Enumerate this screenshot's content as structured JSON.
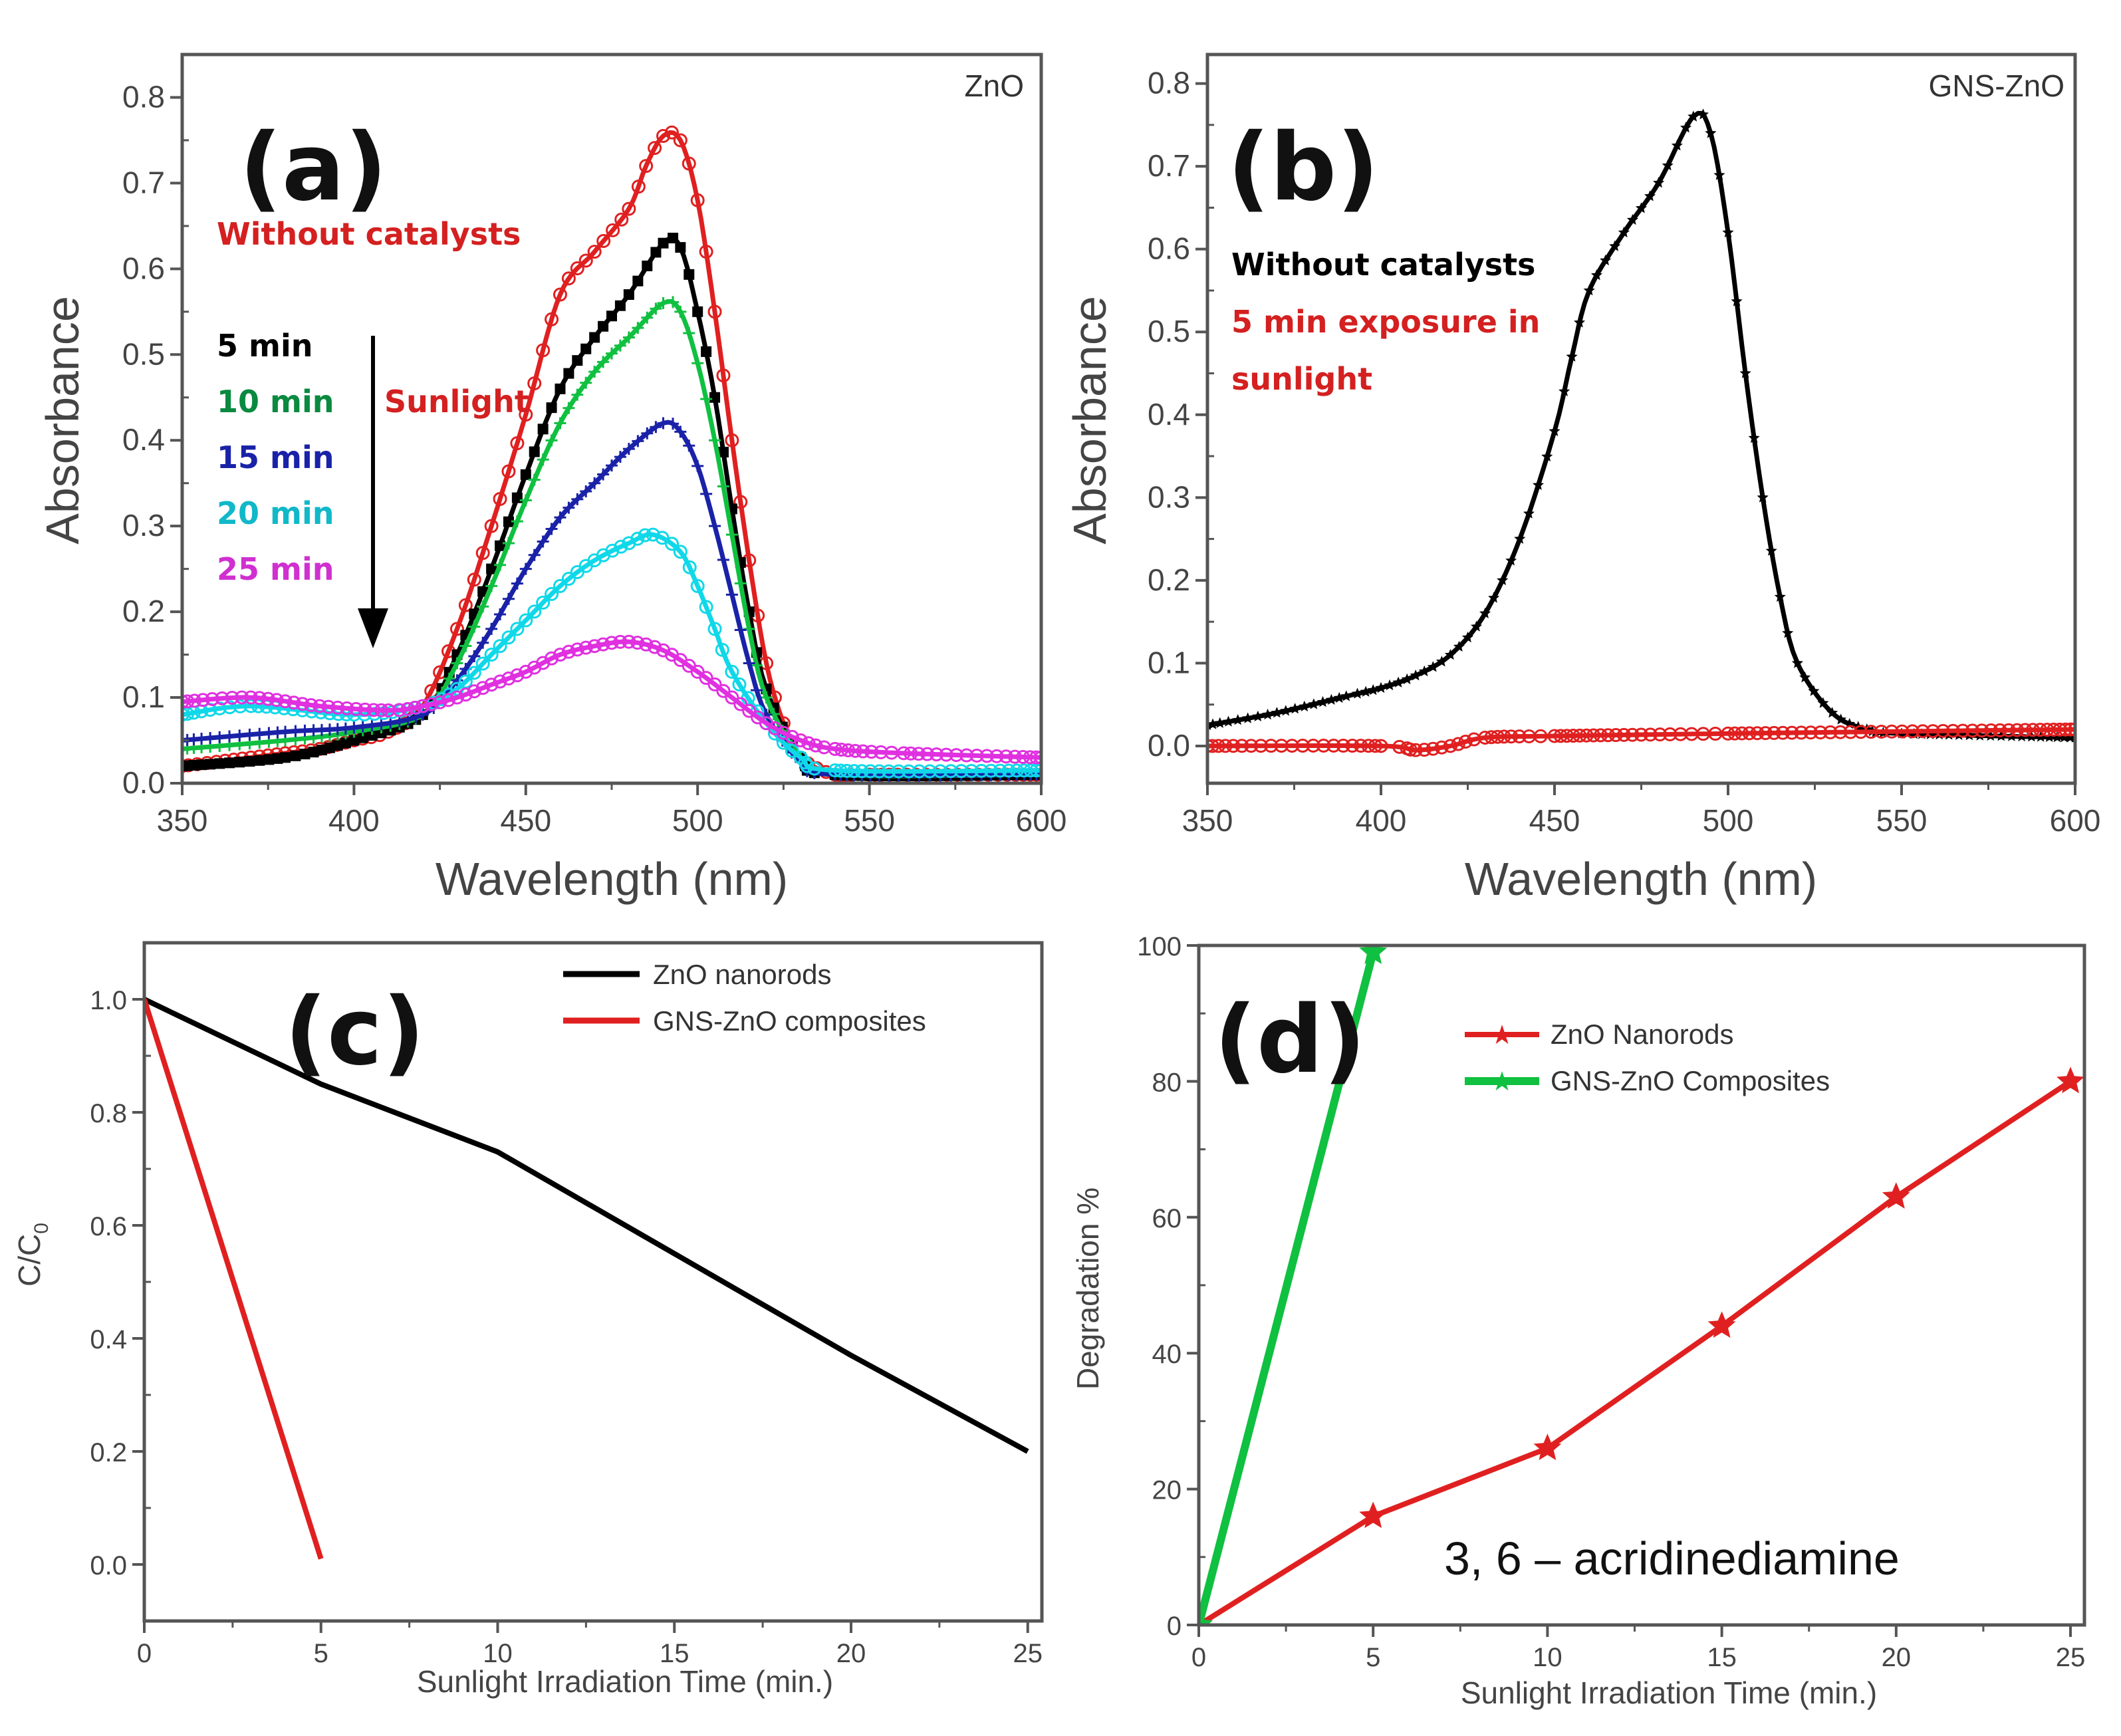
{
  "colors": {
    "red": "#e02020",
    "black": "#000000",
    "green": "#10c040",
    "blue": "#1a22a8",
    "cyan": "#10d8e8",
    "magenta": "#e030e0",
    "darkgreen": "#0a8a40",
    "axis": "#555555"
  },
  "chart_data": [
    {
      "id": "a",
      "type": "line",
      "panel_label": "(a)",
      "corner_label": "ZnO",
      "xlabel": "Wavelength (nm)",
      "ylabel": "Absorbance",
      "xlim": [
        350,
        600
      ],
      "ylim": [
        0,
        0.85
      ],
      "xticks": [
        350,
        400,
        450,
        500,
        550,
        600
      ],
      "xtick_labels": [
        "350",
        "400",
        "450",
        "500",
        "550",
        "600"
      ],
      "yticks": [
        0,
        0.1,
        0.2,
        0.3,
        0.4,
        0.5,
        0.6,
        0.7,
        0.8
      ],
      "ytick_labels": [
        "0.0",
        "0.1",
        "0.2",
        "0.3",
        "0.4",
        "0.5",
        "0.6",
        "0.7",
        "0.8"
      ],
      "annotations": {
        "without": "Without catalysts",
        "sunlight": "Sunlight",
        "t5": "5 min",
        "t10": "10 min",
        "t15": "15 min",
        "t20": "20 min",
        "t25": "25 min"
      },
      "series": [
        {
          "name": "Without catalysts",
          "color": "#e02020",
          "marker": "circle",
          "x": [
            350,
            360,
            370,
            380,
            390,
            400,
            410,
            420,
            430,
            440,
            450,
            460,
            470,
            480,
            485,
            490,
            495,
            500,
            505,
            510,
            515,
            520,
            525,
            530,
            540,
            550,
            600
          ],
          "y": [
            0.02,
            0.025,
            0.03,
            0.035,
            0.04,
            0.05,
            0.06,
            0.09,
            0.18,
            0.3,
            0.43,
            0.57,
            0.62,
            0.67,
            0.72,
            0.755,
            0.75,
            0.68,
            0.55,
            0.4,
            0.26,
            0.14,
            0.07,
            0.03,
            0.01,
            0.01,
            0.01
          ]
        },
        {
          "name": "5 min",
          "color": "#000000",
          "marker": "square",
          "x": [
            350,
            380,
            400,
            420,
            430,
            440,
            450,
            460,
            470,
            480,
            490,
            495,
            500,
            505,
            510,
            515,
            520,
            530,
            540,
            600
          ],
          "y": [
            0.02,
            0.03,
            0.05,
            0.08,
            0.15,
            0.25,
            0.36,
            0.46,
            0.52,
            0.57,
            0.63,
            0.625,
            0.55,
            0.45,
            0.32,
            0.2,
            0.11,
            0.03,
            0.01,
            0.01
          ]
        },
        {
          "name": "10 min",
          "color": "#10c040",
          "marker": "cross",
          "x": [
            350,
            380,
            400,
            420,
            430,
            440,
            450,
            460,
            470,
            480,
            490,
            495,
            500,
            505,
            510,
            515,
            520,
            530,
            540,
            600
          ],
          "y": [
            0.04,
            0.05,
            0.06,
            0.08,
            0.14,
            0.23,
            0.33,
            0.42,
            0.48,
            0.52,
            0.56,
            0.55,
            0.49,
            0.4,
            0.29,
            0.18,
            0.1,
            0.03,
            0.01,
            0.01
          ]
        },
        {
          "name": "15 min",
          "color": "#1a22a8",
          "marker": "cross",
          "x": [
            350,
            380,
            400,
            420,
            430,
            440,
            450,
            460,
            470,
            480,
            490,
            495,
            500,
            505,
            510,
            515,
            520,
            530,
            540,
            600
          ],
          "y": [
            0.05,
            0.06,
            0.065,
            0.08,
            0.12,
            0.18,
            0.25,
            0.31,
            0.35,
            0.39,
            0.42,
            0.41,
            0.37,
            0.3,
            0.22,
            0.14,
            0.08,
            0.025,
            0.01,
            0.01
          ]
        },
        {
          "name": "20 min",
          "color": "#10d8e8",
          "marker": "circle",
          "x": [
            350,
            370,
            400,
            420,
            430,
            440,
            450,
            460,
            470,
            480,
            487,
            495,
            500,
            505,
            510,
            520,
            530,
            540,
            600
          ],
          "y": [
            0.08,
            0.09,
            0.08,
            0.09,
            0.11,
            0.15,
            0.19,
            0.23,
            0.26,
            0.28,
            0.29,
            0.27,
            0.23,
            0.18,
            0.13,
            0.07,
            0.03,
            0.015,
            0.015
          ]
        },
        {
          "name": "25 min",
          "color": "#e030e0",
          "marker": "circle",
          "x": [
            350,
            370,
            390,
            410,
            420,
            430,
            440,
            450,
            460,
            470,
            480,
            490,
            500,
            510,
            520,
            530,
            540,
            560,
            600
          ],
          "y": [
            0.095,
            0.1,
            0.09,
            0.085,
            0.09,
            0.1,
            0.115,
            0.13,
            0.15,
            0.16,
            0.165,
            0.155,
            0.13,
            0.1,
            0.07,
            0.05,
            0.04,
            0.035,
            0.03
          ]
        }
      ]
    },
    {
      "id": "b",
      "type": "line",
      "panel_label": "(b)",
      "corner_label": "GNS-ZnO",
      "xlabel": "Wavelength (nm)",
      "ylabel": "Absorbance",
      "xlim": [
        350,
        600
      ],
      "ylim": [
        -0.045,
        0.835
      ],
      "xticks": [
        350,
        400,
        450,
        500,
        550,
        600
      ],
      "xtick_labels": [
        "350",
        "400",
        "450",
        "500",
        "550",
        "600"
      ],
      "yticks": [
        0,
        0.1,
        0.2,
        0.3,
        0.4,
        0.5,
        0.6,
        0.7,
        0.8
      ],
      "ytick_labels": [
        "0.0",
        "0.1",
        "0.2",
        "0.3",
        "0.4",
        "0.5",
        "0.6",
        "0.7",
        "0.8"
      ],
      "annotations": {
        "without": "Without catalysts",
        "exposure1": "5 min exposure in",
        "exposure2": "sunlight"
      },
      "series": [
        {
          "name": "Without catalysts",
          "color": "#000000",
          "marker": "star",
          "x": [
            350,
            370,
            390,
            400,
            410,
            420,
            430,
            440,
            450,
            455,
            460,
            470,
            480,
            490,
            495,
            500,
            505,
            510,
            515,
            520,
            530,
            540,
            550,
            600
          ],
          "y": [
            0.025,
            0.04,
            0.06,
            0.07,
            0.085,
            0.11,
            0.16,
            0.25,
            0.38,
            0.47,
            0.55,
            0.62,
            0.68,
            0.76,
            0.74,
            0.62,
            0.45,
            0.3,
            0.18,
            0.1,
            0.04,
            0.02,
            0.015,
            0.01
          ]
        },
        {
          "name": "5 min exposure in sunlight",
          "color": "#e02020",
          "marker": "circle",
          "x": [
            350,
            400,
            410,
            420,
            430,
            450,
            500,
            600
          ],
          "y": [
            0.0,
            0.0,
            -0.005,
            0.0,
            0.01,
            0.012,
            0.015,
            0.02
          ]
        }
      ]
    },
    {
      "id": "c",
      "type": "line",
      "panel_label": "(c)",
      "xlabel": "Sunlight Irradiation Time (min.)",
      "ylabel": "C/C",
      "ylabel_sub": "0",
      "xlim": [
        0,
        25.4
      ],
      "ylim": [
        -0.1,
        1.1
      ],
      "xticks": [
        0,
        5,
        10,
        15,
        20,
        25
      ],
      "xtick_labels": [
        "0",
        "5",
        "10",
        "15",
        "20",
        "25"
      ],
      "yticks": [
        0,
        0.2,
        0.4,
        0.6,
        0.8,
        1.0
      ],
      "ytick_labels": [
        "0.0",
        "0.2",
        "0.4",
        "0.6",
        "0.8",
        "1.0"
      ],
      "legend": "top-right",
      "series": [
        {
          "name": "ZnO nanorods",
          "color": "#000000",
          "marker": "none",
          "x": [
            0,
            5,
            10,
            15,
            20,
            25
          ],
          "y": [
            1.0,
            0.85,
            0.73,
            0.55,
            0.37,
            0.2
          ]
        },
        {
          "name": "GNS-ZnO composites",
          "color": "#e02020",
          "marker": "none",
          "x": [
            0,
            5
          ],
          "y": [
            1.0,
            0.01
          ]
        }
      ]
    },
    {
      "id": "d",
      "type": "line",
      "panel_label": "(d)",
      "xlabel": "Sunlight Irradiation Time (min.)",
      "ylabel": "Degradation %",
      "xlim": [
        0,
        25.4
      ],
      "ylim": [
        0,
        100
      ],
      "xticks": [
        0,
        5,
        10,
        15,
        20,
        25
      ],
      "xtick_labels": [
        "0",
        "5",
        "10",
        "15",
        "20",
        "25"
      ],
      "yticks": [
        0,
        20,
        40,
        60,
        80,
        100
      ],
      "ytick_labels": [
        "0",
        "20",
        "40",
        "60",
        "80",
        "100"
      ],
      "legend": "upper-center",
      "annotation": "3, 6 – acridinediamine",
      "series": [
        {
          "name": "ZnO Nanorods",
          "color": "#e02020",
          "marker": "star",
          "x": [
            0,
            5,
            10,
            15,
            20,
            25
          ],
          "y": [
            0,
            16,
            26,
            44,
            63,
            80
          ]
        },
        {
          "name": "GNS-ZnO Composites",
          "color": "#10c040",
          "marker": "star",
          "x": [
            0,
            5
          ],
          "y": [
            0,
            99
          ]
        }
      ]
    }
  ]
}
